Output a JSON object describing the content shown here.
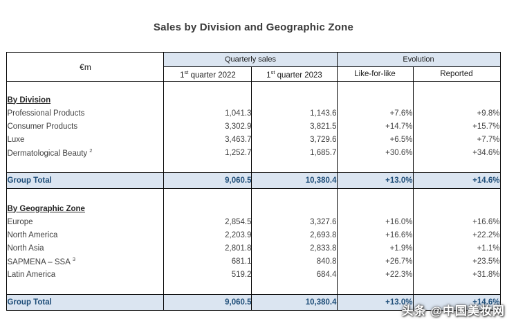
{
  "title": "Sales by Division and Geographic Zone",
  "watermark": "头条 @中国美妆网",
  "colors": {
    "header_bg": "#dbe5f1",
    "total_row_bg": "#dbe5f1",
    "total_row_text": "#1f4e79",
    "border": "#000000",
    "body_text": "#3f3f3f"
  },
  "table": {
    "unit_label": "€m",
    "group_headers": {
      "quarterly_sales": "Quarterly sales",
      "evolution": "Evolution"
    },
    "columns": {
      "q1_2022": {
        "num": "1",
        "ord": "st",
        "text": "quarter 2022"
      },
      "q1_2023": {
        "num": "1",
        "ord": "st",
        "text": "quarter 2023"
      },
      "like_for_like": "Like-for-like",
      "reported": "Reported"
    },
    "sections": [
      {
        "heading": "By Division",
        "rows": [
          {
            "label": "Professional Products",
            "q1_2022": "1,041.3",
            "q1_2023": "1,143.6",
            "lfl": "+7.6%",
            "reported": "+9.8%"
          },
          {
            "label": "Consumer Products",
            "q1_2022": "3,302.9",
            "q1_2023": "3,821.5",
            "lfl": "+14.7%",
            "reported": "+15.7%"
          },
          {
            "label": "Luxe",
            "q1_2022": "3,463.7",
            "q1_2023": "3,729.6",
            "lfl": "+6.5%",
            "reported": "+7.7%"
          },
          {
            "label": "Dermatological Beauty",
            "sup": "2",
            "q1_2022": "1,252.7",
            "q1_2023": "1,685.7",
            "lfl": "+30.6%",
            "reported": "+34.6%"
          }
        ],
        "total": {
          "label": "Group Total",
          "q1_2022": "9,060.5",
          "q1_2023": "10,380.4",
          "lfl": "+13.0%",
          "reported": "+14.6%"
        }
      },
      {
        "heading": "By Geographic Zone",
        "rows": [
          {
            "label": "Europe",
            "q1_2022": "2,854.5",
            "q1_2023": "3,327.6",
            "lfl": "+16.0%",
            "reported": "+16.6%"
          },
          {
            "label": "North America",
            "q1_2022": "2,203.9",
            "q1_2023": "2,693.8",
            "lfl": "+16.6%",
            "reported": "+22.2%"
          },
          {
            "label": "North Asia",
            "q1_2022": "2,801.8",
            "q1_2023": "2,833.8",
            "lfl": "+1.9%",
            "reported": "+1.1%"
          },
          {
            "label": "SAPMENA – SSA",
            "sup": "3",
            "q1_2022": "681.1",
            "q1_2023": "840.8",
            "lfl": "+26.7%",
            "reported": "+23.5%"
          },
          {
            "label": "Latin America",
            "q1_2022": "519.2",
            "q1_2023": "684.4",
            "lfl": "+22.3%",
            "reported": "+31.8%"
          }
        ],
        "total": {
          "label": "Group Total",
          "q1_2022": "9,060.5",
          "q1_2023": "10,380.4",
          "lfl": "+13.0%",
          "reported": "+14.6%"
        }
      }
    ]
  }
}
